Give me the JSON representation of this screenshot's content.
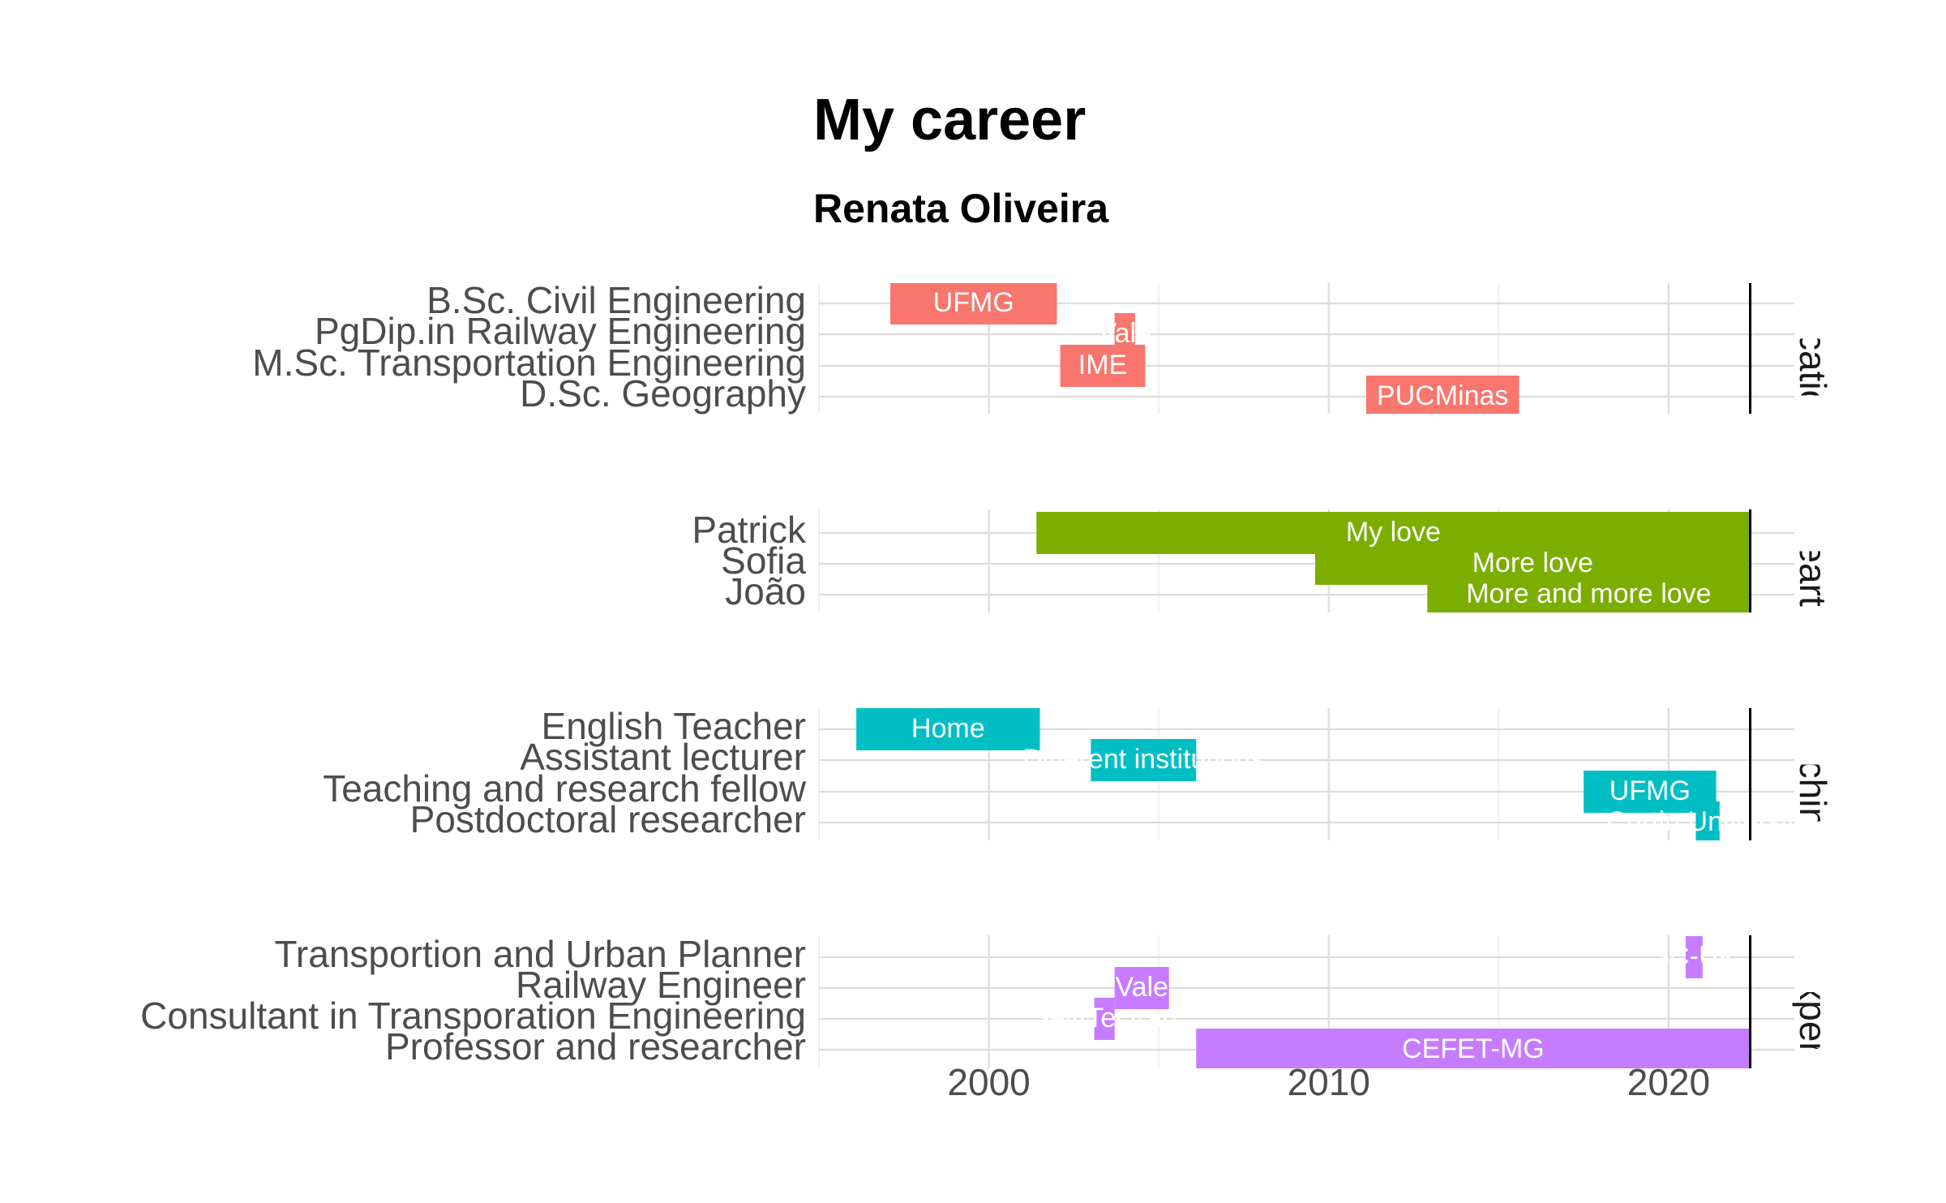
{
  "chart_data": {
    "type": "timeline",
    "title": "My career",
    "subtitle": "Renata Oliveira",
    "xlim": [
      1995,
      2023.7
    ],
    "x_ticks": [
      2000,
      2010,
      2020
    ],
    "grid": true,
    "marker_year": 2022.4,
    "legend": "none",
    "panels": [
      {
        "strip": "Education",
        "color": "#F8766D",
        "categories": [
          "B.Sc. Civil Engineering",
          "PgDip.in Railway Engineering",
          "M.Sc. Transportation Engineering",
          "D.Sc. Geography"
        ],
        "bars": [
          {
            "category": "B.Sc. Civil Engineering",
            "start": 1997.1,
            "end": 2002.0,
            "label": "UFMG"
          },
          {
            "category": "PgDip.in Railway Engineering",
            "start": 2003.7,
            "end": 2004.3,
            "label": "Vale"
          },
          {
            "category": "M.Sc. Transportation Engineering",
            "start": 2002.1,
            "end": 2004.6,
            "label": "IME"
          },
          {
            "category": "D.Sc. Geography",
            "start": 2011.1,
            "end": 2015.6,
            "label": "PUCMinas"
          }
        ]
      },
      {
        "strip": "Heart",
        "color": "#7CAE00",
        "categories": [
          "Patrick",
          "Sofia",
          "João"
        ],
        "bars": [
          {
            "category": "Patrick",
            "start": 2001.4,
            "end": 2022.4,
            "label": "My love"
          },
          {
            "category": "Sofia",
            "start": 2009.6,
            "end": 2022.4,
            "label": "More love"
          },
          {
            "category": "João",
            "start": 2012.9,
            "end": 2022.4,
            "label": "More and more love"
          }
        ]
      },
      {
        "strip": "Teaching",
        "color": "#00BFC4",
        "categories": [
          "English Teacher",
          "Assistant lecturer",
          "Teaching and research fellow",
          "Postdoctoral researcher"
        ],
        "bars": [
          {
            "category": "English Teacher",
            "start": 1996.1,
            "end": 2001.5,
            "label": "Home"
          },
          {
            "category": "Assistant lecturer",
            "start": 2003.0,
            "end": 2006.1,
            "label": "Different institutions"
          },
          {
            "category": "Teaching and research fellow",
            "start": 2017.5,
            "end": 2021.4,
            "label": "UFMG"
          },
          {
            "category": "Postdoctoral researcher",
            "start": 2020.8,
            "end": 2021.5,
            "label": "Curtin University"
          }
        ]
      },
      {
        "strip": "Work Experience",
        "color": "#C77CFF",
        "categories": [
          "Transportion and Urban Planner",
          "Railway Engineer",
          "Consultant in Transporation Engineering",
          "Professor and researcher"
        ],
        "bars": [
          {
            "category": "Transportion and Urban Planner",
            "start": 2020.5,
            "end": 2021.0,
            "label": "SC-UK"
          },
          {
            "category": "Railway Engineer",
            "start": 2003.7,
            "end": 2005.3,
            "label": "Vale"
          },
          {
            "category": "Consultant in Transporation Engineering",
            "start": 2003.1,
            "end": 2003.7,
            "label": "Self/Tectran"
          },
          {
            "category": "Professor and researcher",
            "start": 2006.1,
            "end": 2022.4,
            "label": "CEFET-MG"
          }
        ]
      }
    ]
  }
}
